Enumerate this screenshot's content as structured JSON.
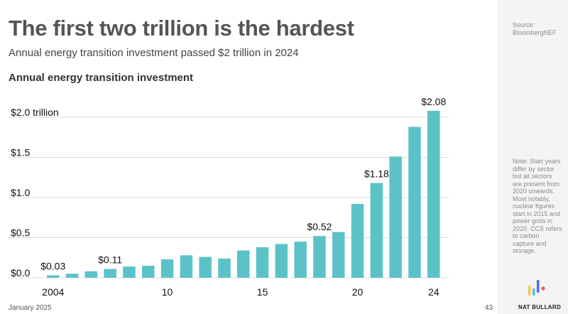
{
  "slide": {
    "title": "The first two trillion is the hardest",
    "subtitle": "Annual energy transition investment passed $2 trillion in 2024",
    "chart_heading": "Annual energy transition investment",
    "source": "Source: BloombergNEF",
    "note": "Note: Start years differ by sector but all sectors are present from 2020 onwards. Most notably, nuclear figures start in 2015 and power grids in 2020. CCS refers to carbon capture and storage.",
    "date": "January 2025",
    "page_number": "43",
    "brand": "NAT BULLARD"
  },
  "colors": {
    "bar": "#5bc3c8",
    "logo": [
      "#f2c94c",
      "#4a6cf7",
      "#56c2e0",
      "#e05a5a"
    ]
  },
  "chart_data": {
    "type": "bar",
    "title": "Annual energy transition investment",
    "categories": [
      "2004",
      "2005",
      "2006",
      "2007",
      "2008",
      "2009",
      "2010",
      "2011",
      "2012",
      "2013",
      "2014",
      "2015",
      "2016",
      "2017",
      "2018",
      "2019",
      "2020",
      "2021",
      "2022",
      "2023",
      "2024"
    ],
    "x_tick_labels": [
      {
        "category": "2004",
        "text": "2004"
      },
      {
        "category": "2010",
        "text": "10"
      },
      {
        "category": "2015",
        "text": "15"
      },
      {
        "category": "2020",
        "text": "20"
      },
      {
        "category": "2024",
        "text": "24"
      }
    ],
    "series": [
      {
        "values": [
          0.03,
          0.05,
          0.08,
          0.11,
          0.14,
          0.15,
          0.23,
          0.28,
          0.26,
          0.24,
          0.34,
          0.38,
          0.42,
          0.45,
          0.52,
          0.57,
          0.92,
          1.18,
          1.51,
          1.88,
          2.08
        ]
      }
    ],
    "y_ticks": [
      {
        "value": 0.0,
        "label": "$0.0"
      },
      {
        "value": 0.5,
        "label": "$0.5"
      },
      {
        "value": 1.0,
        "label": "$1.0"
      },
      {
        "value": 1.5,
        "label": "$1.5"
      },
      {
        "value": 2.0,
        "label": "$2.0 trillion"
      }
    ],
    "data_labels": [
      {
        "category": "2004",
        "text": "$0.03"
      },
      {
        "category": "2007",
        "text": "$0.11"
      },
      {
        "category": "2018",
        "text": "$0.52"
      },
      {
        "category": "2021",
        "text": "$1.18"
      },
      {
        "category": "2024",
        "text": "$2.08"
      }
    ],
    "ylim": [
      0,
      2.2
    ],
    "grid": "horizontal",
    "legend": "none"
  }
}
